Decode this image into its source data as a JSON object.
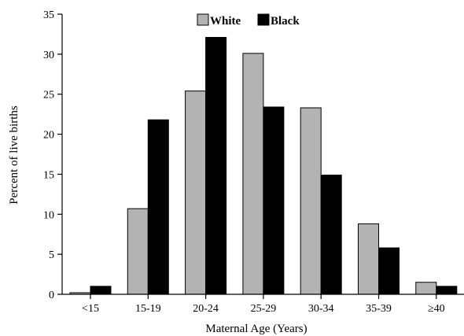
{
  "chart_data": {
    "type": "bar",
    "categories": [
      "<15",
      "15-19",
      "20-24",
      "25-29",
      "30-34",
      "35-39",
      "≥40"
    ],
    "series": [
      {
        "name": "White",
        "color": "#b3b3b3",
        "values": [
          0.2,
          10.7,
          25.4,
          30.1,
          23.3,
          8.8,
          1.5
        ]
      },
      {
        "name": "Black",
        "color": "#000000",
        "values": [
          1.0,
          21.8,
          32.1,
          23.4,
          14.9,
          5.8,
          1.0
        ]
      }
    ],
    "xlabel": "Maternal Age (Years)",
    "ylabel": "Percent of live births",
    "ylim": [
      0,
      35
    ],
    "yticks": [
      0,
      5,
      10,
      15,
      20,
      25,
      30,
      35
    ],
    "grid": false,
    "legend_position": "top-center"
  }
}
